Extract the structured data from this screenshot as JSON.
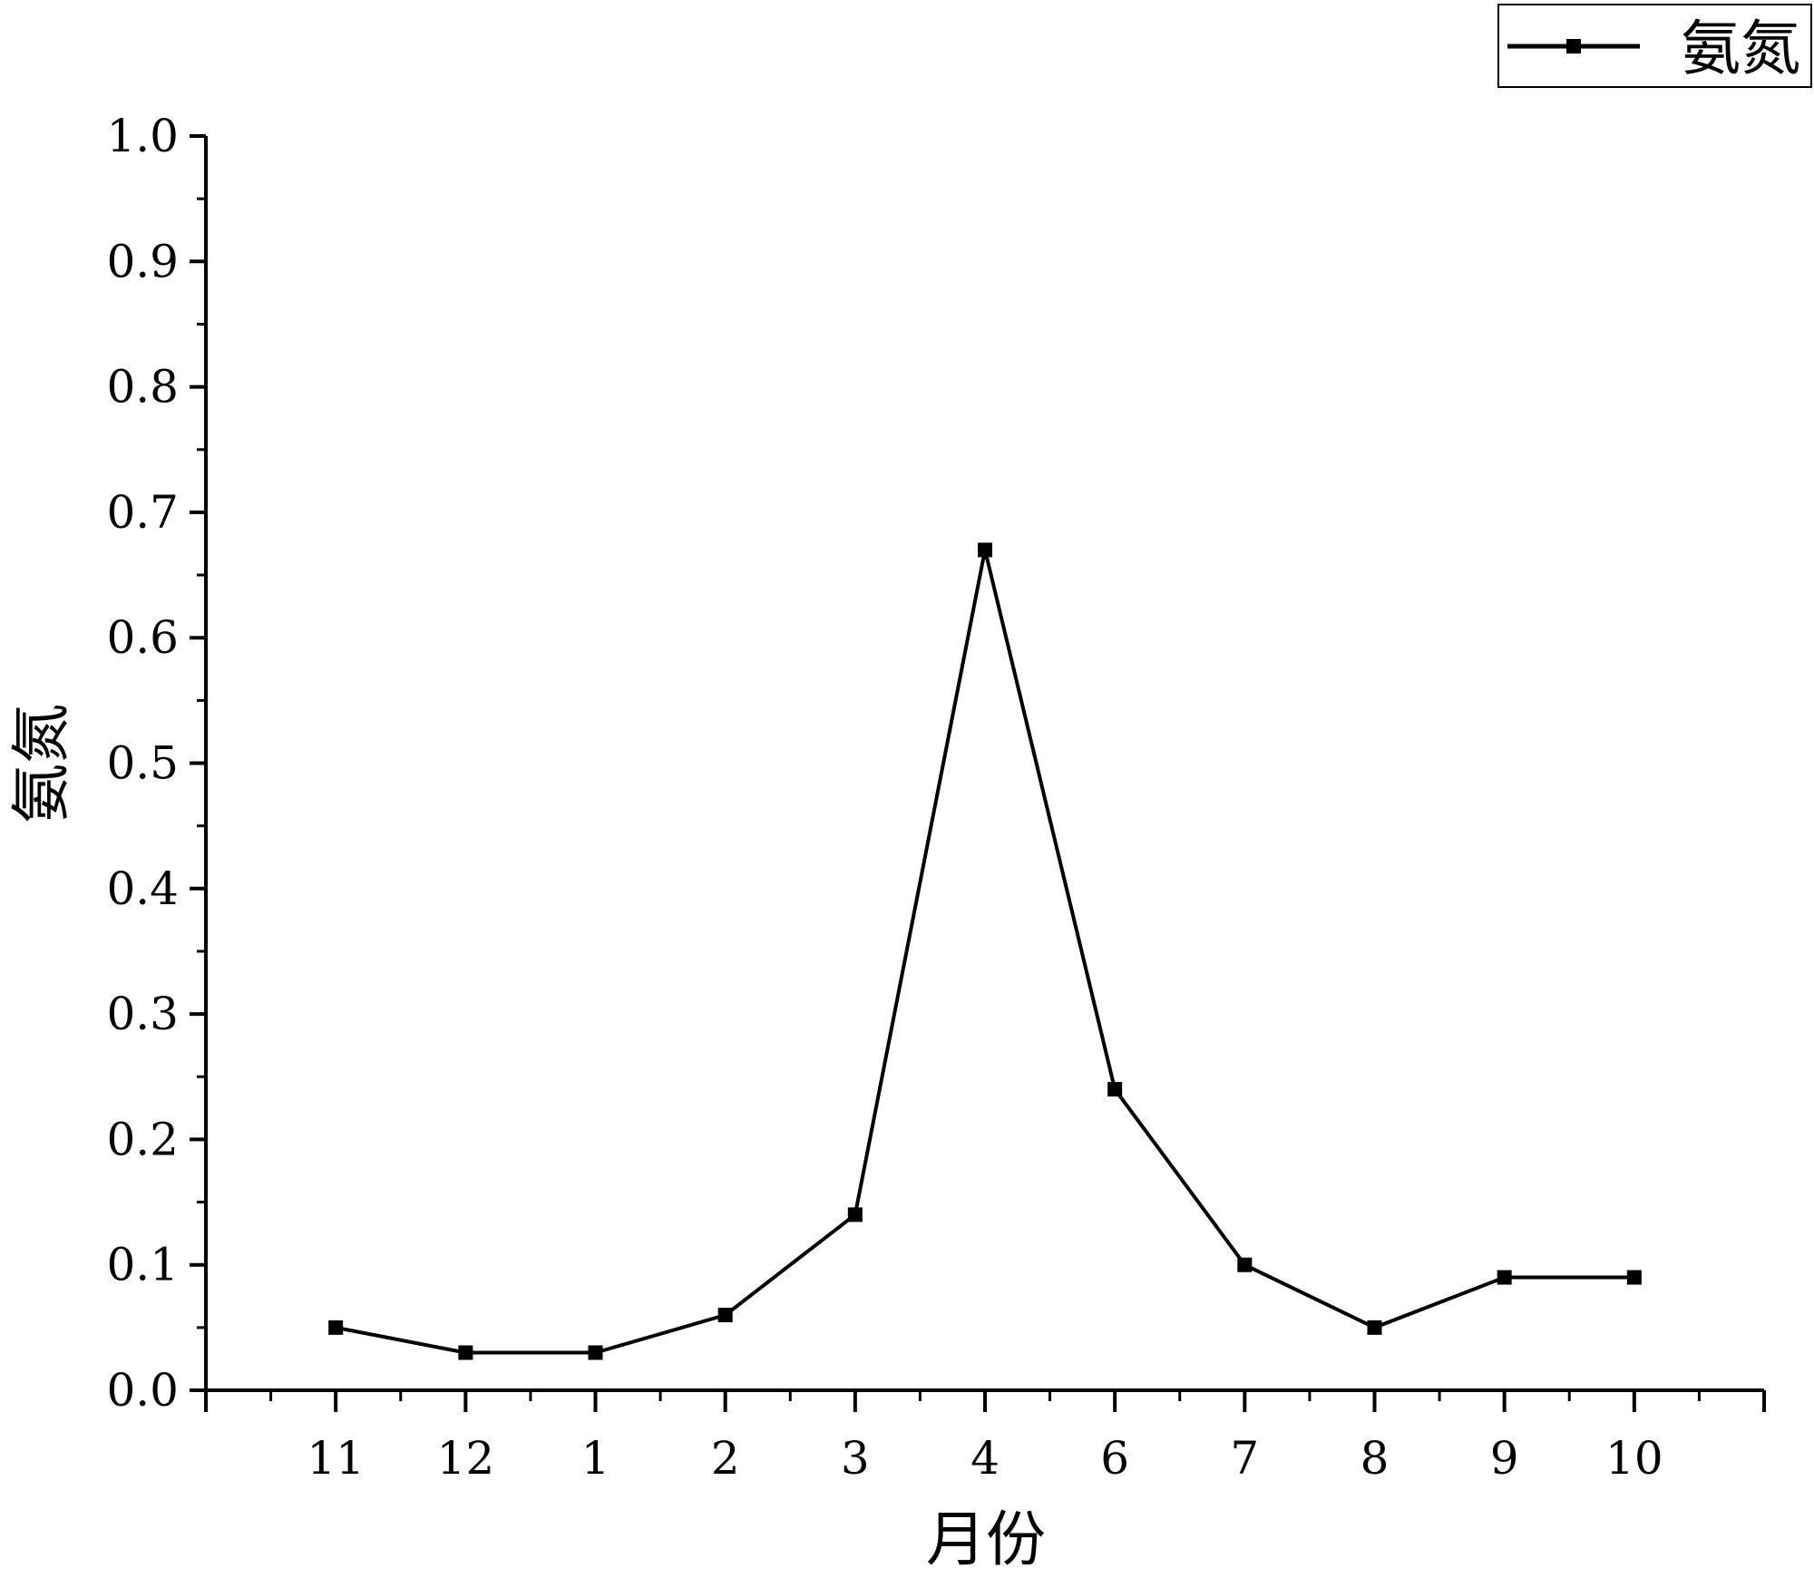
{
  "chart_data": {
    "type": "line",
    "title": "",
    "xlabel": "月份",
    "ylabel": "氨氮",
    "categories": [
      "11",
      "12",
      "1",
      "2",
      "3",
      "4",
      "6",
      "7",
      "8",
      "9",
      "10"
    ],
    "series": [
      {
        "name": "氨氮",
        "values": [
          0.05,
          0.03,
          0.03,
          0.06,
          0.14,
          0.67,
          0.24,
          0.1,
          0.05,
          0.09,
          0.09
        ],
        "color": "#000000",
        "marker": "square"
      }
    ],
    "ylim": [
      0,
      1.0
    ],
    "yticks": [
      "0.0",
      "0.1",
      "0.2",
      "0.3",
      "0.4",
      "0.5",
      "0.6",
      "0.7",
      "0.8",
      "0.9",
      "1.0"
    ],
    "grid": false,
    "legend": "top-right"
  }
}
